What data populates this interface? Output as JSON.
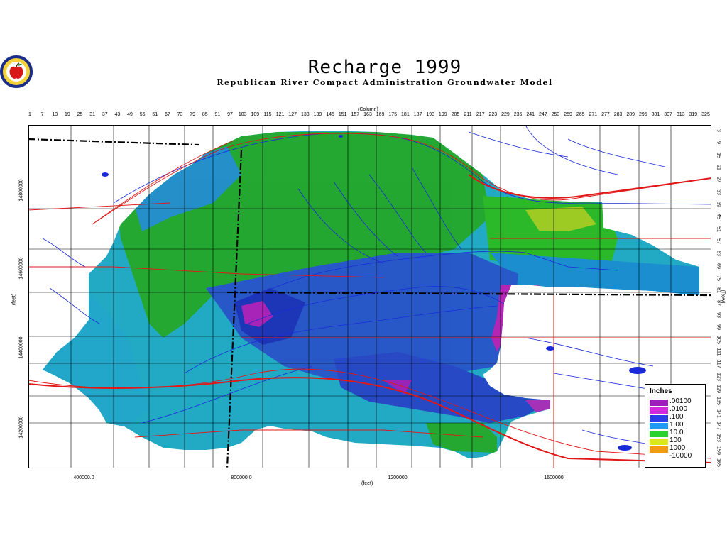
{
  "title": "Recharge  1999",
  "subtitle": "Republican River Compact Administration Groundwater Model",
  "column_axis_title": "(Column)",
  "row_axis_title": "(Row)",
  "x_unit": "(feet)",
  "y_unit": "(feet)",
  "column_ticks": [
    "1",
    "7",
    "13",
    "19",
    "25",
    "31",
    "37",
    "43",
    "49",
    "55",
    "61",
    "67",
    "73",
    "79",
    "85",
    "91",
    "97",
    "103",
    "109",
    "115",
    "121",
    "127",
    "133",
    "139",
    "145",
    "151",
    "157",
    "163",
    "169",
    "175",
    "181",
    "187",
    "193",
    "199",
    "205",
    "211",
    "217",
    "223",
    "229",
    "235",
    "241",
    "247",
    "253",
    "259",
    "265",
    "271",
    "277",
    "283",
    "289",
    "295",
    "301",
    "307",
    "313",
    "319",
    "325"
  ],
  "row_ticks": [
    "3",
    "9",
    "15",
    "21",
    "27",
    "33",
    "39",
    "45",
    "51",
    "57",
    "63",
    "69",
    "75",
    "81",
    "87",
    "93",
    "99",
    "105",
    "111",
    "117",
    "123",
    "129",
    "135",
    "141",
    "147",
    "153",
    "159",
    "165"
  ],
  "x_ticks": [
    "400000.0",
    "800000.0",
    "1200000",
    "1600000"
  ],
  "y_ticks": [
    "14800000",
    "14600000",
    "14400000",
    "14200000"
  ],
  "legend": {
    "title": "Inches",
    "items": [
      {
        "label": ".00100",
        "color": "#9b1fb8"
      },
      {
        "label": ".0100",
        "color": "#d22ad8"
      },
      {
        "label": ".100",
        "color": "#2a3fe6"
      },
      {
        "label": "1.00",
        "color": "#1f9af2"
      },
      {
        "label": "10.0",
        "color": "#2bd22d"
      },
      {
        "label": "100",
        "color": "#dde81c"
      },
      {
        "label": "1000",
        "color": "#f39a13"
      },
      {
        "label": "-10000",
        "color": "#ffffff"
      }
    ]
  },
  "colors": {
    "highway": "#e01818",
    "river": "#1a2ad8",
    "county_line": "#000000",
    "state_line": "#000000"
  },
  "logo_icon": "apple-seal-icon"
}
